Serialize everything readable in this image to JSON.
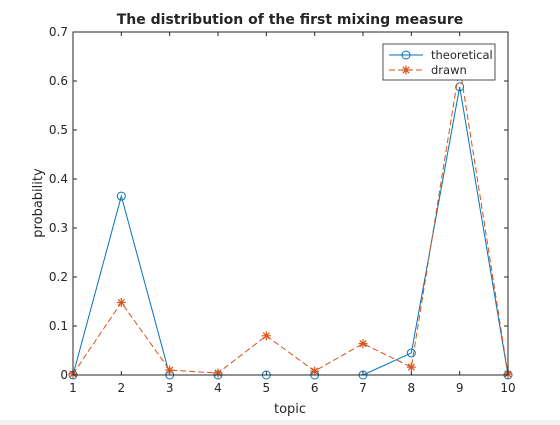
{
  "chart_data": {
    "type": "line",
    "title": "The distribution of the first mixing measure",
    "xlabel": "topic",
    "ylabel": "probability",
    "xlim": [
      1,
      10
    ],
    "ylim": [
      0,
      0.7
    ],
    "x": [
      1,
      2,
      3,
      4,
      5,
      6,
      7,
      8,
      9,
      10
    ],
    "x_ticks": [
      1,
      2,
      3,
      4,
      5,
      6,
      7,
      8,
      9,
      10
    ],
    "y_ticks": [
      0,
      0.1,
      0.2,
      0.3,
      0.4,
      0.5,
      0.6,
      0.7
    ],
    "grid": false,
    "legend_position": "top-right",
    "series": [
      {
        "name": "theoretical",
        "values": [
          0.0,
          0.365,
          0.0,
          0.0,
          0.0,
          0.0,
          0.0,
          0.045,
          0.588,
          0.0
        ],
        "color": "#0072BD",
        "line_style": "solid",
        "marker": "circle"
      },
      {
        "name": "drawn",
        "values": [
          0.002,
          0.148,
          0.01,
          0.004,
          0.08,
          0.008,
          0.064,
          0.016,
          0.63,
          0.002
        ],
        "color": "#D95319",
        "line_style": "dashed",
        "marker": "asterisk"
      }
    ]
  }
}
